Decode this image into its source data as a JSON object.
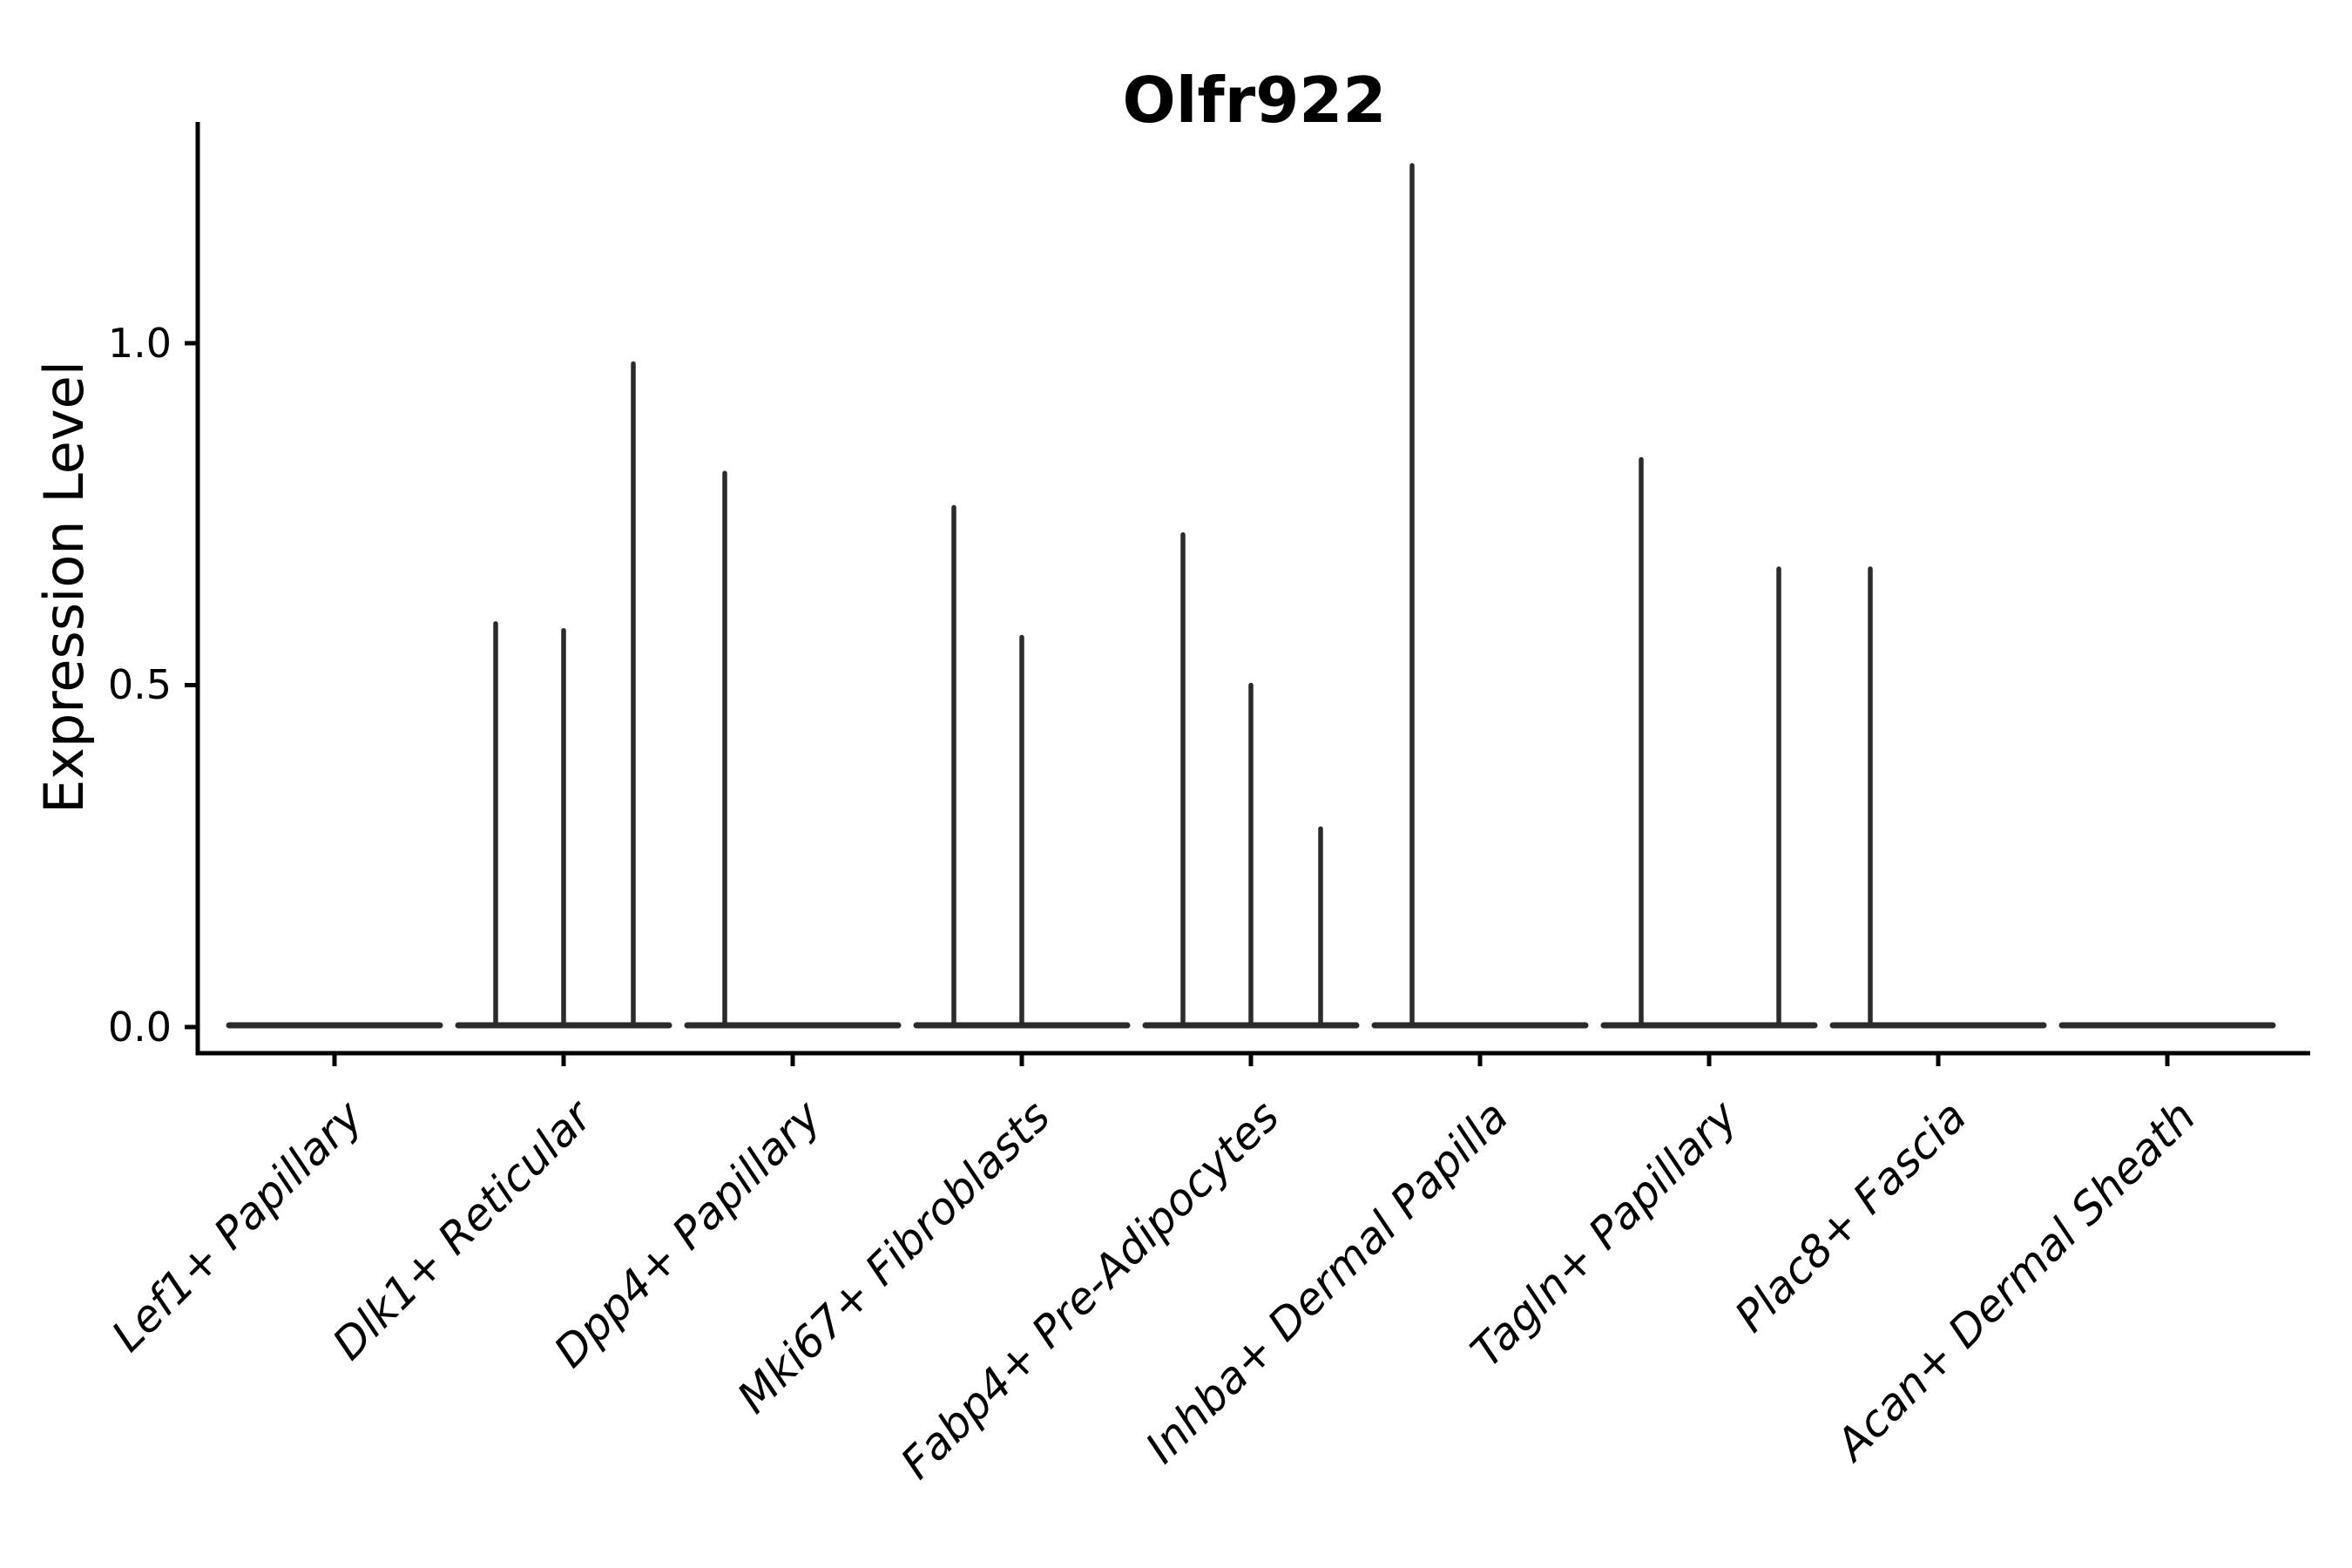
{
  "chart_data": {
    "type": "violin",
    "title": "Olfr922",
    "ylabel": "Expression Level",
    "xlabel": "",
    "yticks": [
      "0.0",
      "0.5",
      "1.0"
    ],
    "ytick_values": [
      0.0,
      0.5,
      1.0
    ],
    "ylim": [
      -0.04,
      1.32
    ],
    "grid": false,
    "legend_position": "none",
    "categories": [
      "Lef1+ Papillary",
      "Dlk1+ Reticular",
      "Dpp4+ Papillary",
      "Mki67+ Fibroblasts",
      "Fabp4+ Pre-Adipocytes",
      "Inhba+ Dermal Papilla",
      "Tagln+ Papillary",
      "Plac8+ Fascia",
      "Acan+ Dermal Sheath"
    ],
    "violins": [
      {
        "category": "Lef1+ Papillary",
        "baseline_value": 0.0,
        "spikes": []
      },
      {
        "category": "Dlk1+ Reticular",
        "baseline_value": 0.0,
        "spikes": [
          {
            "slot": "left",
            "value": 0.59
          },
          {
            "slot": "center",
            "value": 0.58
          },
          {
            "slot": "right",
            "value": 0.97
          }
        ]
      },
      {
        "category": "Dpp4+ Papillary",
        "baseline_value": 0.0,
        "spikes": [
          {
            "slot": "left",
            "value": 0.81
          }
        ]
      },
      {
        "category": "Mki67+ Fibroblasts",
        "baseline_value": 0.0,
        "spikes": [
          {
            "slot": "left",
            "value": 0.76
          },
          {
            "slot": "center",
            "value": 0.57
          }
        ]
      },
      {
        "category": "Fabp4+ Pre-Adipocytes",
        "baseline_value": 0.0,
        "spikes": [
          {
            "slot": "left",
            "value": 0.72
          },
          {
            "slot": "center",
            "value": 0.5
          },
          {
            "slot": "right",
            "value": 0.29
          }
        ]
      },
      {
        "category": "Inhba+ Dermal Papilla",
        "baseline_value": 0.0,
        "spikes": [
          {
            "slot": "left",
            "value": 1.26
          }
        ]
      },
      {
        "category": "Tagln+ Papillary",
        "baseline_value": 0.0,
        "spikes": [
          {
            "slot": "left",
            "value": 0.83
          },
          {
            "slot": "right",
            "value": 0.67
          }
        ]
      },
      {
        "category": "Plac8+ Fascia",
        "baseline_value": 0.0,
        "spikes": [
          {
            "slot": "left",
            "value": 0.67
          }
        ]
      },
      {
        "category": "Acan+ Dermal Sheath",
        "baseline_value": 0.0,
        "spikes": []
      }
    ],
    "colors": {
      "violin": "#2b2b2b",
      "axis": "#000000",
      "text": "#000000",
      "background": "#ffffff"
    }
  }
}
